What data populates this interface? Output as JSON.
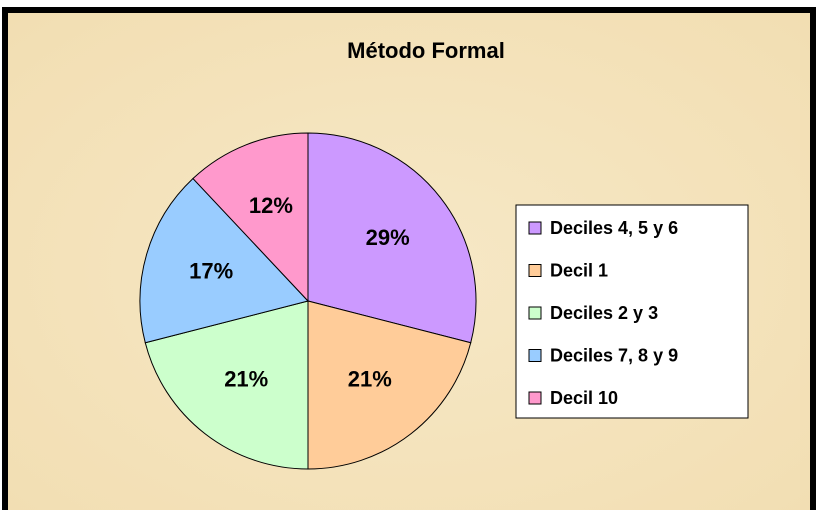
{
  "chart_data": {
    "type": "pie",
    "title": "Método Formal",
    "categories": [
      "Deciles 4, 5 y 6",
      "Decil 1",
      "Deciles 2 y 3",
      "Deciles 7, 8 y 9",
      "Decil 10"
    ],
    "values": [
      29,
      21,
      21,
      17,
      12
    ],
    "value_labels": [
      "29%",
      "21%",
      "21%",
      "17%",
      "12%"
    ],
    "colors": [
      "#cc99ff",
      "#ffcc99",
      "#ccffcc",
      "#99ccff",
      "#ff99cc"
    ],
    "legend": "right"
  }
}
